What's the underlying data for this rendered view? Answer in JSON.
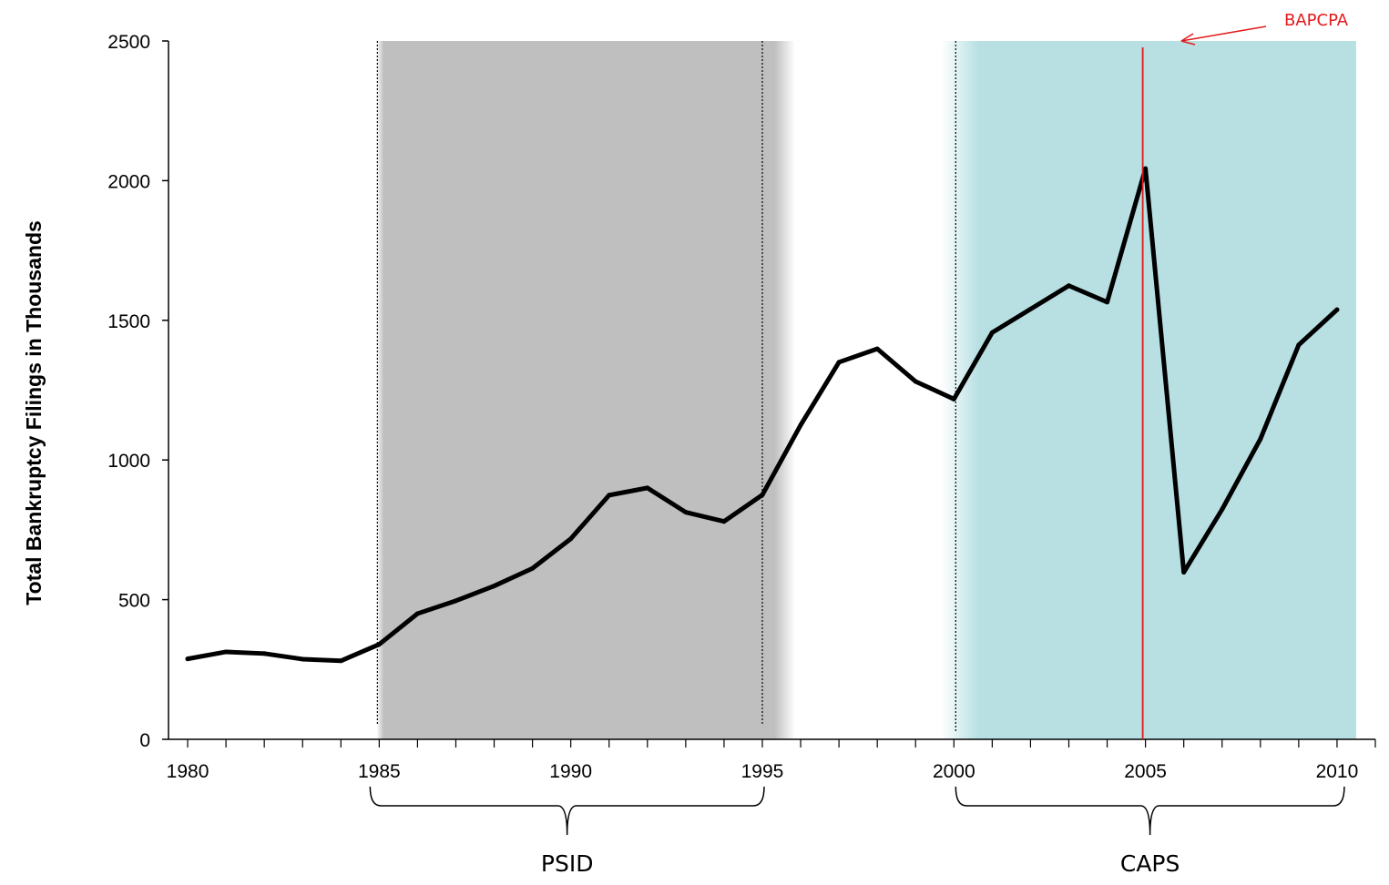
{
  "chart_data": {
    "type": "line",
    "title": "",
    "xlabel": "",
    "ylabel": "Total Bankruptcy Filings in Thousands",
    "xlim": [
      1979.5,
      2011.0
    ],
    "ylim": [
      0,
      2500
    ],
    "xticks": [
      1980,
      1985,
      1990,
      1995,
      2000,
      2005,
      2010
    ],
    "yticks": [
      0,
      500,
      1000,
      1500,
      2000,
      2500
    ],
    "grid": false,
    "legend": "none",
    "series": [
      {
        "color": "#000000",
        "x": [
          1980,
          1981,
          1982,
          1983,
          1984,
          1985,
          1986,
          1987,
          1988,
          1989,
          1990,
          1991,
          1992,
          1993,
          1994,
          1995,
          1996,
          1997,
          1998,
          1999,
          2000,
          2001,
          2002,
          2003,
          2004,
          2005,
          2006,
          2007,
          2008,
          2009,
          2010
        ],
        "values": [
          288,
          313,
          307,
          287,
          281,
          340,
          450,
          496,
          549,
          612,
          718,
          874,
          900,
          813,
          780,
          875,
          1125,
          1350,
          1398,
          1281,
          1218,
          1456,
          1540,
          1624,
          1565,
          2043,
          598,
          823,
          1075,
          1412,
          1538
        ]
      }
    ],
    "shaded_regions": [
      {
        "label": "PSID",
        "start": 1985,
        "end": 1995.5,
        "color": "#bfbfbf"
      },
      {
        "label": "CAPS",
        "start": 2000.5,
        "end": 2010.5,
        "color": "#b8e0e3"
      }
    ],
    "annotations": [
      {
        "label": "BAPCPA",
        "x": 2005,
        "color": "#e31a1c"
      }
    ]
  }
}
